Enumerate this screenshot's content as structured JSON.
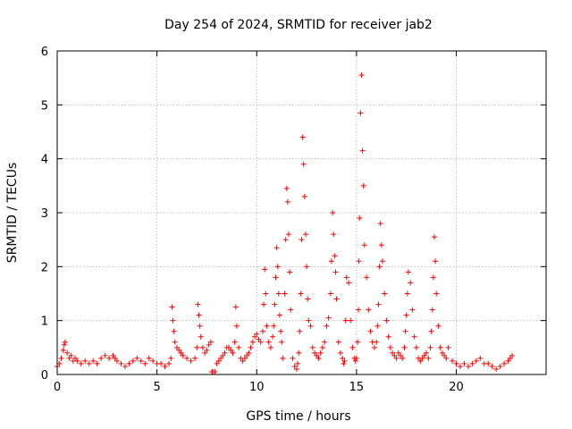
{
  "chart_data": {
    "type": "scatter",
    "title": "Day 254 of 2024, SRMTID for receiver jab2",
    "xlabel": "GPS time / hours",
    "ylabel": "SRMTID / TECUs",
    "xlim": [
      0,
      24.5
    ],
    "ylim": [
      0,
      6
    ],
    "xticks": [
      0,
      5,
      10,
      15,
      20
    ],
    "yticks": [
      0,
      1,
      2,
      3,
      4,
      5,
      6
    ],
    "grid": true,
    "marker": "+",
    "series": [
      {
        "name": "SRMTID",
        "color": "#ff0000",
        "x": [
          0.0,
          0.1,
          0.2,
          0.3,
          0.35,
          0.4,
          0.5,
          0.6,
          0.7,
          0.8,
          0.9,
          1.0,
          1.2,
          1.4,
          1.6,
          1.8,
          2.0,
          2.2,
          2.4,
          2.6,
          2.8,
          2.9,
          3.0,
          3.2,
          3.4,
          3.6,
          3.8,
          4.0,
          4.2,
          4.4,
          4.6,
          4.8,
          5.0,
          5.2,
          5.4,
          5.6,
          5.7,
          5.75,
          5.8,
          5.85,
          5.9,
          6.0,
          6.1,
          6.2,
          6.3,
          6.5,
          6.7,
          6.9,
          7.0,
          7.05,
          7.1,
          7.15,
          7.2,
          7.3,
          7.4,
          7.5,
          7.6,
          7.7,
          7.75,
          7.8,
          7.9,
          8.0,
          8.1,
          8.2,
          8.3,
          8.4,
          8.5,
          8.6,
          8.7,
          8.8,
          8.9,
          8.95,
          9.0,
          9.1,
          9.2,
          9.3,
          9.4,
          9.5,
          9.6,
          9.7,
          9.8,
          9.9,
          10.0,
          10.1,
          10.2,
          10.3,
          10.35,
          10.4,
          10.45,
          10.5,
          10.6,
          10.7,
          10.8,
          10.85,
          10.9,
          10.95,
          11.0,
          11.05,
          11.1,
          11.15,
          11.2,
          11.25,
          11.3,
          11.4,
          11.45,
          11.5,
          11.55,
          11.6,
          11.65,
          11.7,
          11.8,
          11.9,
          12.0,
          12.05,
          12.1,
          12.15,
          12.2,
          12.25,
          12.3,
          12.35,
          12.4,
          12.45,
          12.5,
          12.55,
          12.6,
          12.7,
          12.8,
          12.9,
          13.0,
          13.1,
          13.2,
          13.3,
          13.4,
          13.5,
          13.6,
          13.7,
          13.75,
          13.8,
          13.85,
          13.9,
          13.95,
          14.0,
          14.1,
          14.2,
          14.3,
          14.35,
          14.4,
          14.45,
          14.5,
          14.6,
          14.7,
          14.8,
          14.9,
          14.95,
          15.0,
          15.05,
          15.1,
          15.12,
          15.15,
          15.2,
          15.25,
          15.3,
          15.35,
          15.4,
          15.5,
          15.6,
          15.7,
          15.8,
          15.9,
          16.0,
          16.05,
          16.1,
          16.15,
          16.2,
          16.25,
          16.3,
          16.4,
          16.5,
          16.6,
          16.7,
          16.8,
          16.9,
          17.0,
          17.1,
          17.2,
          17.3,
          17.4,
          17.45,
          17.5,
          17.55,
          17.6,
          17.7,
          17.8,
          17.9,
          18.0,
          18.1,
          18.2,
          18.3,
          18.4,
          18.5,
          18.6,
          18.7,
          18.75,
          18.8,
          18.85,
          18.9,
          18.95,
          19.0,
          19.1,
          19.2,
          19.3,
          19.4,
          19.5,
          19.6,
          19.8,
          20.0,
          20.2,
          20.4,
          20.6,
          20.8,
          21.0,
          21.2,
          21.4,
          21.6,
          21.8,
          22.0,
          22.2,
          22.4,
          22.6,
          22.7,
          22.8
        ],
        "y": [
          0.15,
          0.2,
          0.3,
          0.45,
          0.55,
          0.6,
          0.4,
          0.3,
          0.35,
          0.25,
          0.3,
          0.25,
          0.2,
          0.25,
          0.2,
          0.25,
          0.2,
          0.3,
          0.35,
          0.3,
          0.35,
          0.3,
          0.25,
          0.2,
          0.15,
          0.2,
          0.25,
          0.3,
          0.25,
          0.2,
          0.3,
          0.25,
          0.2,
          0.2,
          0.15,
          0.2,
          0.3,
          1.25,
          1.0,
          0.8,
          0.6,
          0.5,
          0.45,
          0.4,
          0.35,
          0.3,
          0.25,
          0.3,
          0.5,
          1.3,
          1.1,
          0.9,
          0.7,
          0.5,
          0.4,
          0.45,
          0.55,
          0.6,
          0.05,
          0.05,
          0.05,
          0.2,
          0.25,
          0.3,
          0.35,
          0.4,
          0.5,
          0.5,
          0.45,
          0.4,
          0.6,
          1.25,
          0.9,
          0.5,
          0.3,
          0.25,
          0.3,
          0.35,
          0.4,
          0.5,
          0.6,
          0.7,
          0.75,
          0.65,
          0.6,
          0.8,
          1.3,
          1.95,
          1.5,
          0.9,
          0.6,
          0.5,
          0.7,
          0.9,
          1.3,
          1.8,
          2.35,
          2.0,
          1.5,
          1.1,
          0.8,
          0.6,
          0.3,
          1.5,
          2.5,
          3.45,
          3.2,
          2.6,
          1.9,
          1.2,
          0.3,
          0.15,
          0.1,
          0.2,
          0.4,
          0.8,
          1.5,
          2.5,
          4.4,
          3.9,
          3.3,
          2.6,
          2.0,
          1.4,
          1.0,
          0.9,
          0.5,
          0.4,
          0.35,
          0.3,
          0.4,
          0.5,
          0.6,
          0.9,
          1.05,
          1.5,
          2.1,
          3.0,
          2.6,
          2.2,
          1.9,
          1.4,
          0.6,
          0.4,
          0.3,
          0.2,
          0.25,
          1.0,
          1.8,
          1.7,
          1.0,
          0.5,
          0.3,
          0.25,
          0.3,
          0.6,
          1.2,
          2.1,
          2.9,
          4.85,
          5.55,
          4.15,
          3.5,
          2.4,
          1.8,
          1.2,
          0.8,
          0.6,
          0.5,
          0.6,
          0.9,
          1.3,
          2.0,
          2.8,
          2.4,
          2.1,
          1.5,
          1.0,
          0.7,
          0.5,
          0.4,
          0.35,
          0.3,
          0.4,
          0.35,
          0.3,
          0.5,
          0.8,
          1.1,
          1.5,
          1.9,
          1.7,
          1.2,
          0.7,
          0.5,
          0.3,
          0.25,
          0.3,
          0.35,
          0.4,
          0.3,
          0.5,
          0.8,
          1.2,
          1.8,
          2.55,
          2.1,
          1.5,
          0.9,
          0.5,
          0.4,
          0.35,
          0.3,
          0.5,
          0.25,
          0.2,
          0.15,
          0.2,
          0.15,
          0.2,
          0.25,
          0.3,
          0.2,
          0.2,
          0.15,
          0.1,
          0.15,
          0.2,
          0.25,
          0.3,
          0.35
        ]
      }
    ]
  }
}
